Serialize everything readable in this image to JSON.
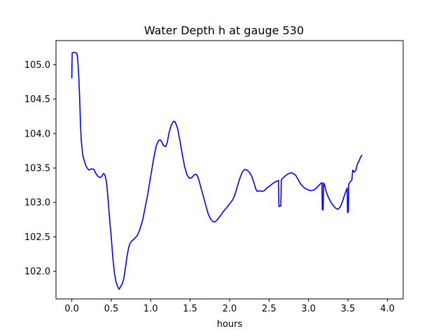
{
  "chart_data": {
    "type": "line",
    "title": "Water Depth h at gauge 530",
    "xlabel": "hours",
    "ylabel": "",
    "xlim": [
      -0.2,
      4.2
    ],
    "ylim": [
      101.6,
      105.35
    ],
    "grid": false,
    "xticks": [
      0.0,
      0.5,
      1.0,
      1.5,
      2.0,
      2.5,
      3.0,
      3.5,
      4.0
    ],
    "xtick_labels": [
      "0.0",
      "0.5",
      "1.0",
      "1.5",
      "2.0",
      "2.5",
      "3.0",
      "3.5",
      "4.0"
    ],
    "yticks": [
      102.0,
      102.5,
      103.0,
      103.5,
      104.0,
      104.5,
      105.0
    ],
    "ytick_labels": [
      "102.0",
      "102.5",
      "103.0",
      "103.5",
      "104.0",
      "104.5",
      "105.0"
    ],
    "series": [
      {
        "name": "",
        "color": "#0000ff",
        "points": [
          [
            0.0,
            104.8
          ],
          [
            0.005,
            105.17
          ],
          [
            0.03,
            105.18
          ],
          [
            0.06,
            105.17
          ],
          [
            0.07,
            105.13
          ],
          [
            0.08,
            105.0
          ],
          [
            0.09,
            104.8
          ],
          [
            0.1,
            104.5
          ],
          [
            0.11,
            104.15
          ],
          [
            0.12,
            103.9
          ],
          [
            0.14,
            103.68
          ],
          [
            0.16,
            103.6
          ],
          [
            0.18,
            103.53
          ],
          [
            0.2,
            103.49
          ],
          [
            0.22,
            103.47
          ],
          [
            0.25,
            103.49
          ],
          [
            0.28,
            103.48
          ],
          [
            0.3,
            103.43
          ],
          [
            0.33,
            103.38
          ],
          [
            0.36,
            103.36
          ],
          [
            0.38,
            103.38
          ],
          [
            0.4,
            103.42
          ],
          [
            0.42,
            103.4
          ],
          [
            0.44,
            103.3
          ],
          [
            0.46,
            103.05
          ],
          [
            0.48,
            102.75
          ],
          [
            0.5,
            102.5
          ],
          [
            0.52,
            102.2
          ],
          [
            0.54,
            101.98
          ],
          [
            0.56,
            101.85
          ],
          [
            0.58,
            101.78
          ],
          [
            0.6,
            101.74
          ],
          [
            0.62,
            101.78
          ],
          [
            0.64,
            101.82
          ],
          [
            0.66,
            101.9
          ],
          [
            0.68,
            102.05
          ],
          [
            0.7,
            102.22
          ],
          [
            0.72,
            102.34
          ],
          [
            0.74,
            102.41
          ],
          [
            0.76,
            102.44
          ],
          [
            0.78,
            102.46
          ],
          [
            0.8,
            102.48
          ],
          [
            0.83,
            102.52
          ],
          [
            0.86,
            102.6
          ],
          [
            0.9,
            102.75
          ],
          [
            0.93,
            102.93
          ],
          [
            0.96,
            103.1
          ],
          [
            1.0,
            103.38
          ],
          [
            1.04,
            103.65
          ],
          [
            1.07,
            103.82
          ],
          [
            1.1,
            103.9
          ],
          [
            1.12,
            103.91
          ],
          [
            1.14,
            103.88
          ],
          [
            1.16,
            103.83
          ],
          [
            1.19,
            103.81
          ],
          [
            1.21,
            103.87
          ],
          [
            1.23,
            104.0
          ],
          [
            1.26,
            104.12
          ],
          [
            1.29,
            104.18
          ],
          [
            1.31,
            104.17
          ],
          [
            1.34,
            104.08
          ],
          [
            1.37,
            103.9
          ],
          [
            1.4,
            103.7
          ],
          [
            1.43,
            103.52
          ],
          [
            1.46,
            103.4
          ],
          [
            1.49,
            103.35
          ],
          [
            1.52,
            103.36
          ],
          [
            1.55,
            103.4
          ],
          [
            1.57,
            103.41
          ],
          [
            1.59,
            103.39
          ],
          [
            1.61,
            103.33
          ],
          [
            1.64,
            103.2
          ],
          [
            1.67,
            103.08
          ],
          [
            1.7,
            102.95
          ],
          [
            1.73,
            102.83
          ],
          [
            1.76,
            102.76
          ],
          [
            1.79,
            102.72
          ],
          [
            1.82,
            102.72
          ],
          [
            1.85,
            102.76
          ],
          [
            1.88,
            102.8
          ],
          [
            1.92,
            102.87
          ],
          [
            1.96,
            102.92
          ],
          [
            2.0,
            102.98
          ],
          [
            2.04,
            103.04
          ],
          [
            2.07,
            103.12
          ],
          [
            2.1,
            103.24
          ],
          [
            2.13,
            103.35
          ],
          [
            2.16,
            103.44
          ],
          [
            2.19,
            103.48
          ],
          [
            2.22,
            103.47
          ],
          [
            2.25,
            103.44
          ],
          [
            2.28,
            103.38
          ],
          [
            2.31,
            103.28
          ],
          [
            2.33,
            103.2
          ],
          [
            2.35,
            103.16
          ],
          [
            2.38,
            103.17
          ],
          [
            2.41,
            103.16
          ],
          [
            2.44,
            103.17
          ],
          [
            2.47,
            103.21
          ],
          [
            2.5,
            103.23
          ],
          [
            2.54,
            103.27
          ],
          [
            2.58,
            103.3
          ],
          [
            2.62,
            103.32
          ],
          [
            2.625,
            102.94
          ],
          [
            2.65,
            102.95
          ],
          [
            2.655,
            103.33
          ],
          [
            2.68,
            103.36
          ],
          [
            2.72,
            103.4
          ],
          [
            2.75,
            103.42
          ],
          [
            2.78,
            103.43
          ],
          [
            2.81,
            103.42
          ],
          [
            2.84,
            103.39
          ],
          [
            2.87,
            103.33
          ],
          [
            2.9,
            103.27
          ],
          [
            2.93,
            103.23
          ],
          [
            2.96,
            103.2
          ],
          [
            3.0,
            103.18
          ],
          [
            3.03,
            103.17
          ],
          [
            3.07,
            103.18
          ],
          [
            3.11,
            103.22
          ],
          [
            3.15,
            103.27
          ],
          [
            3.17,
            103.29
          ],
          [
            3.175,
            102.9
          ],
          [
            3.185,
            102.89
          ],
          [
            3.19,
            103.28
          ],
          [
            3.2,
            103.27
          ],
          [
            3.22,
            103.17
          ],
          [
            3.25,
            103.08
          ],
          [
            3.28,
            103.01
          ],
          [
            3.31,
            102.96
          ],
          [
            3.34,
            102.92
          ],
          [
            3.37,
            102.9
          ],
          [
            3.4,
            102.93
          ],
          [
            3.43,
            103.01
          ],
          [
            3.46,
            103.12
          ],
          [
            3.49,
            103.21
          ],
          [
            3.495,
            102.85
          ],
          [
            3.505,
            102.87
          ],
          [
            3.51,
            103.27
          ],
          [
            3.53,
            103.3
          ],
          [
            3.55,
            103.33
          ],
          [
            3.56,
            103.47
          ],
          [
            3.58,
            103.44
          ],
          [
            3.6,
            103.47
          ],
          [
            3.62,
            103.56
          ],
          [
            3.64,
            103.6
          ],
          [
            3.66,
            103.66
          ],
          [
            3.68,
            103.69
          ]
        ]
      }
    ]
  }
}
